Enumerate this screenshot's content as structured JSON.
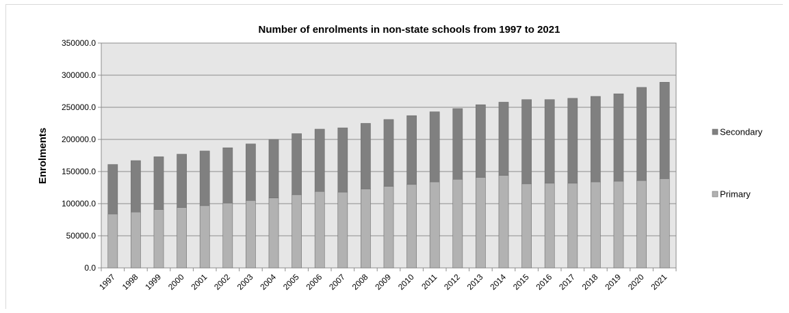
{
  "chart_data": {
    "type": "bar",
    "stacked": true,
    "title": "Number of enrolments in non-state schools from 1997 to 2021",
    "xlabel": "",
    "ylabel": "Enrolments",
    "ylim": [
      0,
      350000
    ],
    "yticks": [
      "0.0",
      "50000.0",
      "100000.0",
      "150000.0",
      "200000.0",
      "250000.0",
      "300000.0",
      "350000.0"
    ],
    "grid": true,
    "legend_position": "right",
    "categories": [
      "1997",
      "1998",
      "1999",
      "2000",
      "2001",
      "2002",
      "2003",
      "2004",
      "2005",
      "2006",
      "2007",
      "2008",
      "2009",
      "2010",
      "2011",
      "2012",
      "2013",
      "2014",
      "2015",
      "2016",
      "2017",
      "2018",
      "2019",
      "2020",
      "2021"
    ],
    "series": [
      {
        "name": "Primary",
        "color": "#b2b2b2",
        "values": [
          84000,
          87000,
          91000,
          94000,
          97000,
          101000,
          105000,
          109000,
          114000,
          119000,
          118000,
          123000,
          127000,
          130000,
          134000,
          138000,
          141000,
          144000,
          131000,
          132000,
          132000,
          134000,
          135000,
          136000,
          139000
        ]
      },
      {
        "name": "Secondary",
        "color": "#808080",
        "values": [
          77000,
          80000,
          82000,
          83000,
          85000,
          86000,
          88000,
          91000,
          95000,
          97000,
          100000,
          102000,
          104000,
          107000,
          109000,
          110000,
          113000,
          114000,
          131000,
          130000,
          132000,
          133000,
          136000,
          145000,
          150000
        ]
      }
    ]
  }
}
